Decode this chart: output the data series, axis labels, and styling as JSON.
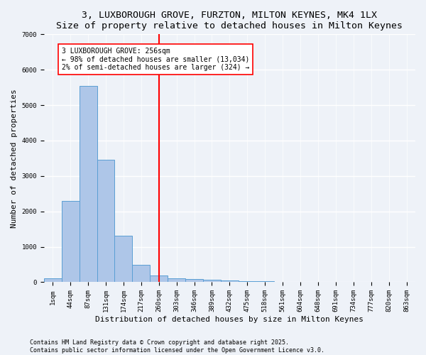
{
  "title1": "3, LUXBOROUGH GROVE, FURZTON, MILTON KEYNES, MK4 1LX",
  "title2": "Size of property relative to detached houses in Milton Keynes",
  "xlabel": "Distribution of detached houses by size in Milton Keynes",
  "ylabel": "Number of detached properties",
  "categories": [
    "1sqm",
    "44sqm",
    "87sqm",
    "131sqm",
    "174sqm",
    "217sqm",
    "260sqm",
    "303sqm",
    "346sqm",
    "389sqm",
    "432sqm",
    "475sqm",
    "518sqm",
    "561sqm",
    "604sqm",
    "648sqm",
    "691sqm",
    "734sqm",
    "777sqm",
    "820sqm",
    "863sqm"
  ],
  "bar_values": [
    100,
    2300,
    5550,
    3450,
    1320,
    490,
    180,
    100,
    80,
    60,
    40,
    30,
    20,
    15,
    10,
    8,
    6,
    5,
    4,
    3,
    2
  ],
  "bar_color": "#aec6e8",
  "bar_edge_color": "#5a9fd4",
  "vline_x_idx": 6,
  "vline_color": "red",
  "annotation_line1": "3 LUXBOROUGH GROVE: 256sqm",
  "annotation_line2": "← 98% of detached houses are smaller (13,034)",
  "annotation_line3": "2% of semi-detached houses are larger (324) →",
  "annotation_box_color": "white",
  "annotation_box_edge": "red",
  "ylim": [
    0,
    7000
  ],
  "yticks": [
    0,
    1000,
    2000,
    3000,
    4000,
    5000,
    6000,
    7000
  ],
  "background_color": "#eef2f8",
  "grid_color": "white",
  "footnote": "Contains HM Land Registry data © Crown copyright and database right 2025.\nContains public sector information licensed under the Open Government Licence v3.0.",
  "title_fontsize": 9.5,
  "label_fontsize": 8,
  "tick_fontsize": 6.5,
  "annot_fontsize": 7,
  "footnote_fontsize": 6
}
